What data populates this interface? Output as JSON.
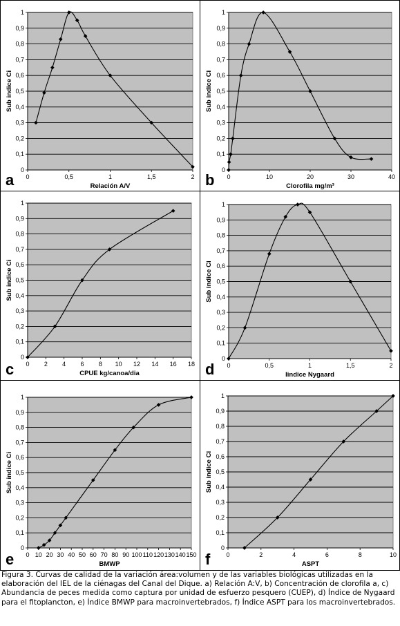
{
  "chart_data": [
    {
      "type": "scatter",
      "letter": "a",
      "xlabel": "Relación A/V",
      "ylabel": "Sub indice Ci",
      "xlim": [
        0,
        2
      ],
      "ylim": [
        0,
        1
      ],
      "xticks": [
        "0",
        "0,5",
        "1",
        "1,5",
        "2"
      ],
      "xtick_values": [
        0,
        0.5,
        1,
        1.5,
        2
      ],
      "yticks": [
        "0",
        "0,1",
        "0,2",
        "0,3",
        "0,4",
        "0,5",
        "0,6",
        "0,7",
        "0,8",
        "0,9",
        "1"
      ],
      "series": [
        {
          "x": [
            0.1,
            0.2,
            0.3,
            0.4,
            0.5,
            0.6,
            0.7,
            1.0,
            1.5,
            2.0
          ],
          "y": [
            0.3,
            0.49,
            0.65,
            0.83,
            1.0,
            0.95,
            0.85,
            0.6,
            0.3,
            0.02
          ]
        }
      ],
      "grid": true,
      "background": "#c0c0c0"
    },
    {
      "type": "scatter",
      "letter": "b",
      "xlabel": "Clorofila mg/m³",
      "ylabel": "Sub indice Ci",
      "xlim": [
        0,
        40
      ],
      "ylim": [
        0,
        1
      ],
      "xticks": [
        "0",
        "10",
        "20",
        "30",
        "40"
      ],
      "xtick_values": [
        0,
        10,
        20,
        30,
        40
      ],
      "yticks": [
        "0",
        "0,1",
        "0,2",
        "0,3",
        "0,4",
        "0,5",
        "0,6",
        "0,7",
        "0,8",
        "0,9",
        "1"
      ],
      "series": [
        {
          "x": [
            0,
            0.1,
            0.5,
            1,
            3,
            5,
            8.5,
            15,
            20,
            26,
            30,
            35
          ],
          "y": [
            0.0,
            0.05,
            0.1,
            0.2,
            0.6,
            0.8,
            1.0,
            0.75,
            0.5,
            0.2,
            0.08,
            0.07
          ]
        }
      ],
      "grid": true,
      "background": "#c0c0c0"
    },
    {
      "type": "scatter",
      "letter": "c",
      "xlabel": "CPUE kg/canoa/dia",
      "ylabel": "Sub indice Ci",
      "xlim": [
        0,
        18
      ],
      "ylim": [
        0,
        1
      ],
      "xticks": [
        "0",
        "2",
        "4",
        "6",
        "8",
        "10",
        "12",
        "14",
        "16",
        "18"
      ],
      "xtick_values": [
        0,
        2,
        4,
        6,
        8,
        10,
        12,
        14,
        16,
        18
      ],
      "yticks": [
        "0",
        "0,1",
        "0,2",
        "0,3",
        "0,4",
        "0,5",
        "0,6",
        "0,7",
        "0,8",
        "0,9",
        "1"
      ],
      "series": [
        {
          "x": [
            0,
            3,
            6,
            9,
            16
          ],
          "y": [
            0.0,
            0.2,
            0.5,
            0.7,
            0.95
          ]
        }
      ],
      "grid": true,
      "background": "#c0c0c0"
    },
    {
      "type": "scatter",
      "letter": "d",
      "xlabel": "Iindice Nygaard",
      "ylabel": "Sub indice Ci",
      "xlim": [
        0,
        2
      ],
      "ylim": [
        0,
        1
      ],
      "xticks": [
        "0",
        "0,5",
        "1",
        "1,5",
        "2"
      ],
      "xtick_values": [
        0,
        0.5,
        1,
        1.5,
        2
      ],
      "yticks": [
        "0",
        "0,1",
        "0,2",
        "0,3",
        "0,4",
        "0,5",
        "0,6",
        "0,7",
        "0,8",
        "0,9",
        "1"
      ],
      "series": [
        {
          "x": [
            0,
            0.2,
            0.5,
            0.7,
            0.85,
            1.0,
            1.5,
            2.0
          ],
          "y": [
            0.0,
            0.2,
            0.68,
            0.92,
            1.0,
            0.95,
            0.5,
            0.05
          ]
        }
      ],
      "grid": true,
      "background": "#c0c0c0"
    },
    {
      "type": "scatter",
      "letter": "e",
      "xlabel": "BMWP",
      "ylabel": "Sub indice Ci",
      "xlim": [
        0,
        150
      ],
      "ylim": [
        0,
        1
      ],
      "xticks": [
        "0",
        "10",
        "20",
        "30",
        "40",
        "50",
        "60",
        "70",
        "80",
        "90",
        "100",
        "110",
        "120",
        "130",
        "140",
        "150"
      ],
      "xtick_values": [
        0,
        10,
        20,
        30,
        40,
        50,
        60,
        70,
        80,
        90,
        100,
        110,
        120,
        130,
        140,
        150
      ],
      "yticks": [
        "0",
        "0,1",
        "0,2",
        "0,3",
        "0,4",
        "0,5",
        "0,6",
        "0,7",
        "0,8",
        "0,9",
        "1"
      ],
      "series": [
        {
          "x": [
            10,
            15,
            20,
            25,
            30,
            35,
            60,
            80,
            97,
            120,
            150
          ],
          "y": [
            0.0,
            0.02,
            0.05,
            0.1,
            0.15,
            0.2,
            0.45,
            0.65,
            0.8,
            0.95,
            1.0
          ]
        }
      ],
      "grid": true,
      "background": "#c0c0c0"
    },
    {
      "type": "scatter",
      "letter": "f",
      "xlabel": "ASPT",
      "ylabel": "Sub indice Ci",
      "xlim": [
        0,
        10
      ],
      "ylim": [
        0,
        1
      ],
      "xticks": [
        "0",
        "2",
        "4",
        "6",
        "8",
        "10"
      ],
      "xtick_values": [
        0,
        2,
        4,
        6,
        8,
        10
      ],
      "yticks": [
        "0",
        "0,1",
        "0,2",
        "0,3",
        "0,4",
        "0,5",
        "0,6",
        "0,7",
        "0,8",
        "0,9",
        "1"
      ],
      "series": [
        {
          "x": [
            1,
            3,
            5,
            7,
            9,
            10
          ],
          "y": [
            0.0,
            0.2,
            0.45,
            0.7,
            0.9,
            1.0
          ]
        }
      ],
      "grid": true,
      "background": "#c0c0c0"
    }
  ],
  "caption": "Figura 3. Curvas de calidad de la variación área:volumen y de las variables biológicas utilizadas en la elaboración del IEL de la ciénagas del Canal del Dique. a) Relación A:V, b) Concentración de clorofila a, c) Abundancia de peces medida como captura por unidad de esfuerzo pesquero (CUEP), d) Índice de Nygaard para el fitoplancton, e) Índice BMWP para macroinvertebrados, f) Índice ASPT para los macroinvertebrados."
}
